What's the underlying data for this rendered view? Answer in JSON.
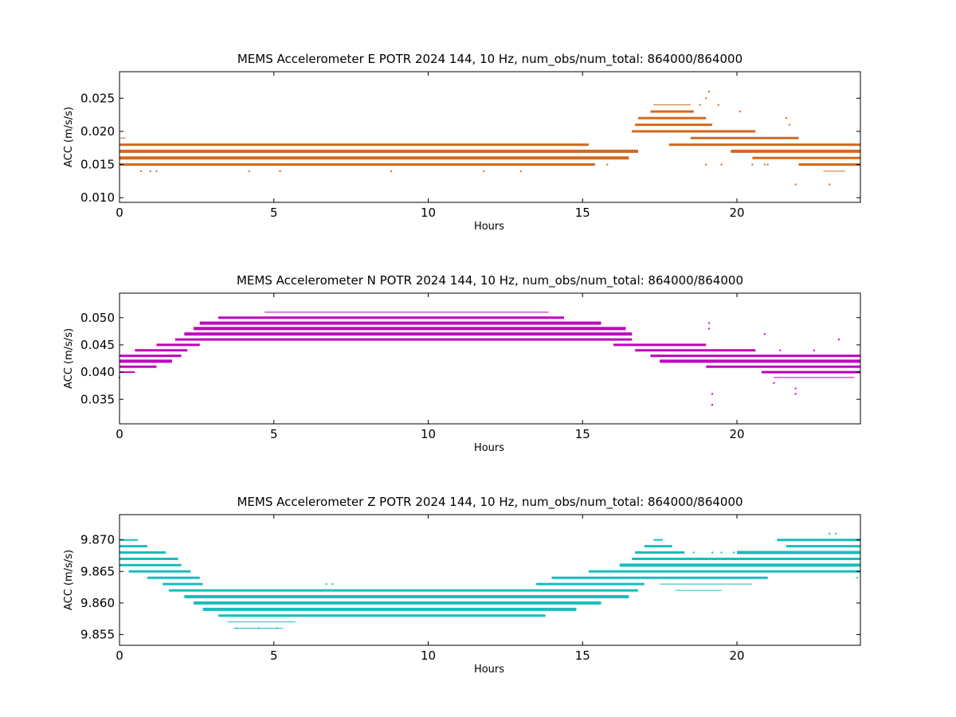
{
  "chart_data": [
    {
      "type": "scatter",
      "title": "MEMS Accelerometer E POTR 2024 144, 10 Hz, num_obs/num_total: 864000/864000",
      "xlabel": "Hours",
      "ylabel": "ACC (m/s/s)",
      "xlim": [
        0,
        24
      ],
      "ylim": [
        0.0093,
        0.029
      ],
      "xticks": [
        0,
        5,
        10,
        15,
        20
      ],
      "xtick_labels": [
        "0",
        "5",
        "10",
        "15",
        "20"
      ],
      "yticks": [
        0.01,
        0.015,
        0.02,
        0.025
      ],
      "ytick_labels": [
        "0.010",
        "0.015",
        "0.020",
        "0.025"
      ],
      "grid": false,
      "legend": "none",
      "color": "#d2691e",
      "bands": [
        {
          "y": 0.019,
          "x": [
            0.0,
            0.2
          ],
          "w": 1
        },
        {
          "y": 0.018,
          "x": [
            0.0,
            15.2
          ],
          "w": 3
        },
        {
          "y": 0.017,
          "x": [
            0.0,
            16.8
          ],
          "w": 4
        },
        {
          "y": 0.016,
          "x": [
            0.0,
            16.5
          ],
          "w": 4
        },
        {
          "y": 0.015,
          "x": [
            0.0,
            15.4
          ],
          "w": 3
        },
        {
          "y": 0.024,
          "x": [
            17.3,
            18.5
          ],
          "w": 1
        },
        {
          "y": 0.023,
          "x": [
            17.2,
            18.6
          ],
          "w": 3
        },
        {
          "y": 0.022,
          "x": [
            16.8,
            19.0
          ],
          "w": 3
        },
        {
          "y": 0.021,
          "x": [
            16.7,
            19.2
          ],
          "w": 3
        },
        {
          "y": 0.02,
          "x": [
            16.6,
            20.6
          ],
          "w": 3
        },
        {
          "y": 0.019,
          "x": [
            18.5,
            22.0
          ],
          "w": 3
        },
        {
          "y": 0.018,
          "x": [
            17.8,
            24.0
          ],
          "w": 3
        },
        {
          "y": 0.017,
          "x": [
            19.8,
            24.0
          ],
          "w": 4
        },
        {
          "y": 0.016,
          "x": [
            20.5,
            24.0
          ],
          "w": 3
        },
        {
          "y": 0.015,
          "x": [
            22.0,
            24.0
          ],
          "w": 3
        },
        {
          "y": 0.014,
          "x": [
            22.8,
            23.5
          ],
          "w": 1
        }
      ],
      "points": [
        [
          0.7,
          0.014
        ],
        [
          1.0,
          0.014
        ],
        [
          1.2,
          0.014
        ],
        [
          4.2,
          0.014
        ],
        [
          5.2,
          0.014
        ],
        [
          8.8,
          0.014
        ],
        [
          11.8,
          0.014
        ],
        [
          13.0,
          0.014
        ],
        [
          15.8,
          0.015
        ],
        [
          19.1,
          0.026
        ],
        [
          19.0,
          0.025
        ],
        [
          18.8,
          0.024
        ],
        [
          19.4,
          0.024
        ],
        [
          20.1,
          0.023
        ],
        [
          21.6,
          0.022
        ],
        [
          21.7,
          0.021
        ],
        [
          19.0,
          0.015
        ],
        [
          19.5,
          0.015
        ],
        [
          21.0,
          0.015
        ],
        [
          21.9,
          0.012
        ],
        [
          23.0,
          0.012
        ],
        [
          20.5,
          0.015
        ],
        [
          20.9,
          0.015
        ]
      ]
    },
    {
      "type": "scatter",
      "title": "MEMS Accelerometer N POTR 2024 144, 10 Hz, num_obs/num_total: 864000/864000",
      "xlabel": "Hours",
      "ylabel": "ACC (m/s/s)",
      "xlim": [
        0,
        24
      ],
      "ylim": [
        0.0305,
        0.0545
      ],
      "xticks": [
        0,
        5,
        10,
        15,
        20
      ],
      "xtick_labels": [
        "0",
        "5",
        "10",
        "15",
        "20"
      ],
      "yticks": [
        0.035,
        0.04,
        0.045,
        0.05
      ],
      "ytick_labels": [
        "0.035",
        "0.040",
        "0.045",
        "0.050"
      ],
      "grid": false,
      "legend": "none",
      "color": "#bf00bf",
      "bands": [
        {
          "y": 0.051,
          "x": [
            4.7,
            13.9
          ],
          "w": 1
        },
        {
          "y": 0.05,
          "x": [
            3.2,
            14.4
          ],
          "w": 3
        },
        {
          "y": 0.049,
          "x": [
            2.6,
            15.6
          ],
          "w": 4
        },
        {
          "y": 0.048,
          "x": [
            2.4,
            16.4
          ],
          "w": 4
        },
        {
          "y": 0.047,
          "x": [
            2.1,
            16.6
          ],
          "w": 4
        },
        {
          "y": 0.046,
          "x": [
            1.8,
            16.6
          ],
          "w": 3
        },
        {
          "y": 0.045,
          "x": [
            1.2,
            2.6
          ],
          "w": 3
        },
        {
          "y": 0.045,
          "x": [
            16.0,
            19.0
          ],
          "w": 3
        },
        {
          "y": 0.044,
          "x": [
            0.5,
            2.2
          ],
          "w": 3
        },
        {
          "y": 0.044,
          "x": [
            16.7,
            20.6
          ],
          "w": 3
        },
        {
          "y": 0.043,
          "x": [
            0.0,
            2.0
          ],
          "w": 3
        },
        {
          "y": 0.043,
          "x": [
            17.2,
            24.0
          ],
          "w": 3
        },
        {
          "y": 0.042,
          "x": [
            0.0,
            1.7
          ],
          "w": 4
        },
        {
          "y": 0.042,
          "x": [
            17.5,
            24.0
          ],
          "w": 4
        },
        {
          "y": 0.041,
          "x": [
            0.0,
            1.2
          ],
          "w": 3
        },
        {
          "y": 0.041,
          "x": [
            19.0,
            24.0
          ],
          "w": 3
        },
        {
          "y": 0.04,
          "x": [
            0.0,
            0.5
          ],
          "w": 2
        },
        {
          "y": 0.04,
          "x": [
            20.8,
            24.0
          ],
          "w": 3
        },
        {
          "y": 0.039,
          "x": [
            21.2,
            23.8
          ],
          "w": 1
        }
      ],
      "points": [
        [
          0.0,
          0.039
        ],
        [
          19.1,
          0.049
        ],
        [
          19.1,
          0.048
        ],
        [
          19.2,
          0.034
        ],
        [
          19.2,
          0.036
        ],
        [
          21.9,
          0.036
        ],
        [
          21.9,
          0.037
        ],
        [
          21.2,
          0.038
        ],
        [
          20.9,
          0.047
        ],
        [
          23.3,
          0.046
        ],
        [
          21.4,
          0.044
        ],
        [
          22.5,
          0.044
        ]
      ]
    },
    {
      "type": "scatter",
      "title": "MEMS Accelerometer Z POTR 2024 144, 10 Hz, num_obs/num_total: 864000/864000",
      "xlabel": "Hours",
      "ylabel": "ACC (m/s/s)",
      "xlim": [
        0,
        24
      ],
      "ylim": [
        9.8533,
        9.874
      ],
      "xticks": [
        0,
        5,
        10,
        15,
        20
      ],
      "xtick_labels": [
        "0",
        "5",
        "10",
        "15",
        "20"
      ],
      "yticks": [
        9.855,
        9.86,
        9.865,
        9.87
      ],
      "ytick_labels": [
        "9.855",
        "9.860",
        "9.865",
        "9.870"
      ],
      "grid": false,
      "legend": "none",
      "color": "#17bebb",
      "bands": [
        {
          "y": 9.87,
          "x": [
            0.0,
            0.6
          ],
          "w": 2
        },
        {
          "y": 9.869,
          "x": [
            0.0,
            0.9
          ],
          "w": 3
        },
        {
          "y": 9.868,
          "x": [
            0.0,
            1.5
          ],
          "w": 3
        },
        {
          "y": 9.867,
          "x": [
            0.0,
            1.9
          ],
          "w": 3
        },
        {
          "y": 9.866,
          "x": [
            0.0,
            2.0
          ],
          "w": 3
        },
        {
          "y": 9.865,
          "x": [
            0.3,
            2.3
          ],
          "w": 3
        },
        {
          "y": 9.864,
          "x": [
            0.9,
            2.6
          ],
          "w": 3
        },
        {
          "y": 9.863,
          "x": [
            1.4,
            2.7
          ],
          "w": 3
        },
        {
          "y": 9.862,
          "x": [
            1.6,
            16.8
          ],
          "w": 3
        },
        {
          "y": 9.861,
          "x": [
            2.1,
            16.5
          ],
          "w": 4
        },
        {
          "y": 9.86,
          "x": [
            2.4,
            15.6
          ],
          "w": 4
        },
        {
          "y": 9.859,
          "x": [
            2.7,
            14.8
          ],
          "w": 4
        },
        {
          "y": 9.858,
          "x": [
            3.2,
            13.8
          ],
          "w": 3
        },
        {
          "y": 9.857,
          "x": [
            3.5,
            5.7
          ],
          "w": 1
        },
        {
          "y": 9.856,
          "x": [
            3.7,
            5.3
          ],
          "w": 1
        },
        {
          "y": 9.87,
          "x": [
            17.3,
            17.6
          ],
          "w": 2
        },
        {
          "y": 9.869,
          "x": [
            17.0,
            17.9
          ],
          "w": 3
        },
        {
          "y": 9.868,
          "x": [
            16.7,
            18.3
          ],
          "w": 3
        },
        {
          "y": 9.87,
          "x": [
            21.3,
            24.0
          ],
          "w": 3
        },
        {
          "y": 9.869,
          "x": [
            21.6,
            24.0
          ],
          "w": 3
        },
        {
          "y": 9.868,
          "x": [
            20.0,
            24.0
          ],
          "w": 4
        },
        {
          "y": 9.867,
          "x": [
            16.6,
            24.0
          ],
          "w": 3
        },
        {
          "y": 9.866,
          "x": [
            16.2,
            24.0
          ],
          "w": 4
        },
        {
          "y": 9.865,
          "x": [
            15.2,
            24.0
          ],
          "w": 3
        },
        {
          "y": 9.864,
          "x": [
            14.0,
            21.0
          ],
          "w": 3
        },
        {
          "y": 9.863,
          "x": [
            13.5,
            17.0
          ],
          "w": 3
        },
        {
          "y": 9.863,
          "x": [
            17.5,
            20.5
          ],
          "w": 1
        },
        {
          "y": 9.862,
          "x": [
            18.0,
            19.5
          ],
          "w": 1
        }
      ],
      "points": [
        [
          23.0,
          9.871
        ],
        [
          23.2,
          9.871
        ],
        [
          18.6,
          9.868
        ],
        [
          19.2,
          9.868
        ],
        [
          19.5,
          9.868
        ],
        [
          19.9,
          9.868
        ],
        [
          3.8,
          9.856
        ],
        [
          4.5,
          9.856
        ],
        [
          5.1,
          9.856
        ],
        [
          6.9,
          9.863
        ],
        [
          6.7,
          9.863
        ],
        [
          14.5,
          9.863
        ],
        [
          23.9,
          9.864
        ]
      ]
    }
  ]
}
